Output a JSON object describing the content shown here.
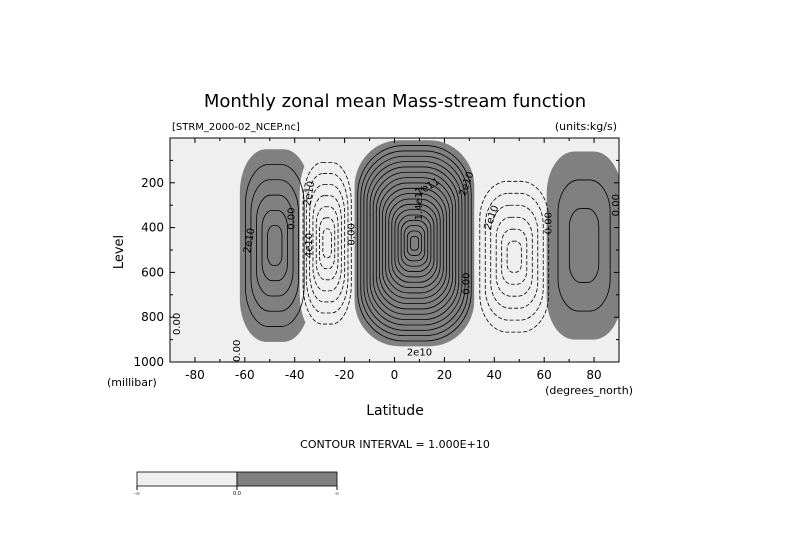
{
  "chart_data": {
    "type": "contour",
    "title": "Monthly zonal mean Mass-stream function",
    "file_label": "[STRM_2000-02_NCEP.nc]",
    "units_label": "(units:kg/s)",
    "xlabel": "Latitude",
    "xunit": "(degrees_north)",
    "ylabel": "Level",
    "yunit": "(millibar)",
    "xlim": [
      -90,
      90
    ],
    "ylim": [
      1000,
      0
    ],
    "x_ticks": [
      -80,
      -60,
      -40,
      -20,
      0,
      20,
      40,
      60,
      80
    ],
    "y_ticks": [
      200,
      400,
      600,
      800,
      1000
    ],
    "contour_interval_text": "CONTOUR INTERVAL = 1.000E+10",
    "shade_colors": {
      "negative": "#efefef",
      "positive": "#808080"
    },
    "colorbar": {
      "ticks": [
        "-∞",
        "0.0",
        "∞"
      ]
    },
    "cells": [
      {
        "sign": "negative",
        "lat_center": -78,
        "lev_center": 430,
        "lat_hw": 12,
        "lev_hw": 390,
        "n_contours": 0
      },
      {
        "sign": "positive",
        "lat_center": -48,
        "lev_center": 480,
        "lat_hw": 14,
        "lev_hw": 430,
        "n_contours": 5
      },
      {
        "sign": "negative",
        "lat_center": -27,
        "lev_center": 470,
        "lat_hw": 11,
        "lev_hw": 410,
        "n_contours": 7
      },
      {
        "sign": "positive",
        "lat_center": 8,
        "lev_center": 470,
        "lat_hw": 24,
        "lev_hw": 460,
        "n_contours": 18
      },
      {
        "sign": "negative",
        "lat_center": 48,
        "lev_center": 530,
        "lat_hw": 16,
        "lev_hw": 390,
        "n_contours": 6
      },
      {
        "sign": "positive",
        "lat_center": 76,
        "lev_center": 480,
        "lat_hw": 15,
        "lev_hw": 420,
        "n_contours": 2
      }
    ],
    "contour_labels": [
      {
        "text": "2e10",
        "lat": -57,
        "lev": 460,
        "rot": -80
      },
      {
        "text": "0.00",
        "lat": -40,
        "lev": 360,
        "rot": -90
      },
      {
        "text": "2e10",
        "lat": -33,
        "lev": 250,
        "rot": -80
      },
      {
        "text": "4e10",
        "lat": -33,
        "lev": 480,
        "rot": -90
      },
      {
        "text": "0.00",
        "lat": -16,
        "lev": 430,
        "rot": -90
      },
      {
        "text": "1.4e11",
        "lat": 11,
        "lev": 290,
        "rot": -90
      },
      {
        "text": "1e11",
        "lat": 14,
        "lev": 230,
        "rot": -30
      },
      {
        "text": "2e10",
        "lat": 30,
        "lev": 210,
        "rot": -70
      },
      {
        "text": "2e10",
        "lat": 10,
        "lev": 970,
        "rot": 0
      },
      {
        "text": "0.00",
        "lat": 30,
        "lev": 650,
        "rot": -90
      },
      {
        "text": "2e10",
        "lat": 40,
        "lev": 360,
        "rot": -70
      },
      {
        "text": "0.00",
        "lat": 63,
        "lev": 380,
        "rot": -90
      },
      {
        "text": "0.00",
        "lat": 90,
        "lev": 300,
        "rot": -90
      },
      {
        "text": "0.00",
        "lat": -86,
        "lev": 830,
        "rot": -90
      },
      {
        "text": "0.00",
        "lat": -62,
        "lev": 950,
        "rot": -90
      }
    ]
  }
}
